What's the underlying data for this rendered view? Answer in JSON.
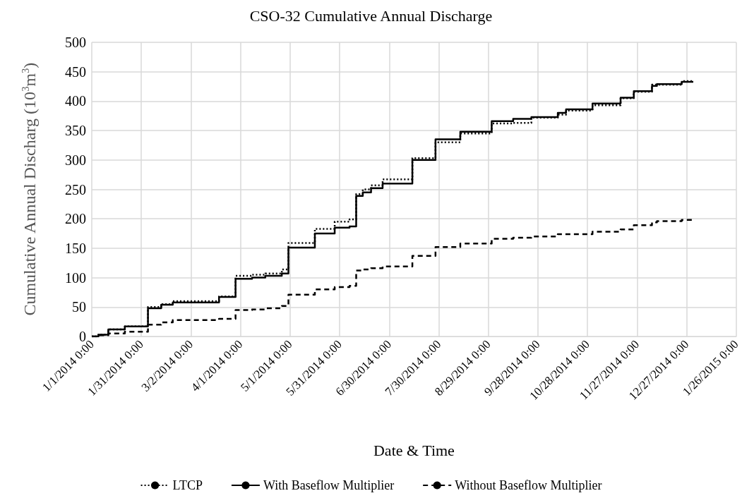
{
  "chart_data": {
    "type": "step",
    "title": "CSO-32 Cumulative Annual Discharge",
    "xlabel": "Date & Time",
    "ylabel": "Cumulative Annual Discharg (10$^{3}$m$^{3}$)",
    "xlim": [
      "2014-01-01",
      "2015-01-26"
    ],
    "xticks": [
      {
        "value": "2014-01-01",
        "label": "1/1/2014 0:00"
      },
      {
        "value": "2014-01-31",
        "label": "1/31/2014 0:00"
      },
      {
        "value": "2014-03-02",
        "label": "3/2/2014 0:00"
      },
      {
        "value": "2014-04-01",
        "label": "4/1/2014 0:00"
      },
      {
        "value": "2014-05-01",
        "label": "5/1/2014 0:00"
      },
      {
        "value": "2014-05-31",
        "label": "5/31/2014 0:00"
      },
      {
        "value": "2014-06-30",
        "label": "6/30/2014 0:00"
      },
      {
        "value": "2014-07-30",
        "label": "7/30/2014 0:00"
      },
      {
        "value": "2014-08-29",
        "label": "8/29/2014 0:00"
      },
      {
        "value": "2014-09-28",
        "label": "9/28/2014 0:00"
      },
      {
        "value": "2014-10-28",
        "label": "10/28/2014 0:00"
      },
      {
        "value": "2014-11-27",
        "label": "11/27/2014 0:00"
      },
      {
        "value": "2014-12-27",
        "label": "12/27/2014 0:00"
      },
      {
        "value": "2015-01-26",
        "label": "1/26/2015 0:00"
      }
    ],
    "ylim": [
      0,
      500
    ],
    "yticks": [
      0,
      50,
      100,
      150,
      200,
      250,
      300,
      350,
      400,
      450,
      500
    ],
    "grid": true,
    "legend": "bottom",
    "marker": "none",
    "x": [
      "2014-01-01",
      "2014-01-05",
      "2014-01-11",
      "2014-01-21",
      "2014-02-04",
      "2014-02-12",
      "2014-02-19",
      "2014-03-19",
      "2014-03-29",
      "2014-04-08",
      "2014-04-16",
      "2014-04-26",
      "2014-04-30",
      "2014-05-16",
      "2014-05-28",
      "2014-06-06",
      "2014-06-10",
      "2014-06-14",
      "2014-06-19",
      "2014-06-26",
      "2014-07-14",
      "2014-07-28",
      "2014-08-12",
      "2014-08-31",
      "2014-09-13",
      "2014-09-24",
      "2014-10-10",
      "2014-10-15",
      "2014-10-31",
      "2014-11-17",
      "2014-11-25",
      "2014-12-06",
      "2014-12-09",
      "2014-12-24",
      "2014-12-31"
    ],
    "series": [
      {
        "name": "LTCP",
        "color": "#000000",
        "line_style": "dotted",
        "values": [
          0,
          3,
          12,
          17,
          50,
          55,
          60,
          68,
          103,
          105,
          107,
          114,
          159,
          183,
          195,
          199,
          242,
          250,
          257,
          267,
          303,
          330,
          345,
          362,
          363,
          372,
          377,
          384,
          393,
          405,
          416,
          428,
          428,
          434,
          434
        ]
      },
      {
        "name": "With Baseflow Multiplier",
        "color": "#000000",
        "line_style": "solid",
        "values": [
          0,
          3,
          12,
          17,
          48,
          54,
          58,
          67,
          98,
          100,
          103,
          107,
          151,
          175,
          185,
          187,
          239,
          245,
          252,
          260,
          300,
          335,
          348,
          366,
          370,
          373,
          380,
          386,
          396,
          406,
          417,
          426,
          429,
          433,
          433
        ]
      },
      {
        "name": "Without Baseflow Multiplier",
        "color": "#000000",
        "line_style": "dashed",
        "values": [
          0,
          2,
          5,
          8,
          20,
          24,
          28,
          30,
          45,
          46,
          48,
          52,
          71,
          80,
          84,
          86,
          112,
          114,
          116,
          119,
          137,
          152,
          158,
          166,
          168,
          170,
          174,
          174,
          178,
          182,
          189,
          194,
          196,
          198,
          198
        ]
      }
    ]
  }
}
